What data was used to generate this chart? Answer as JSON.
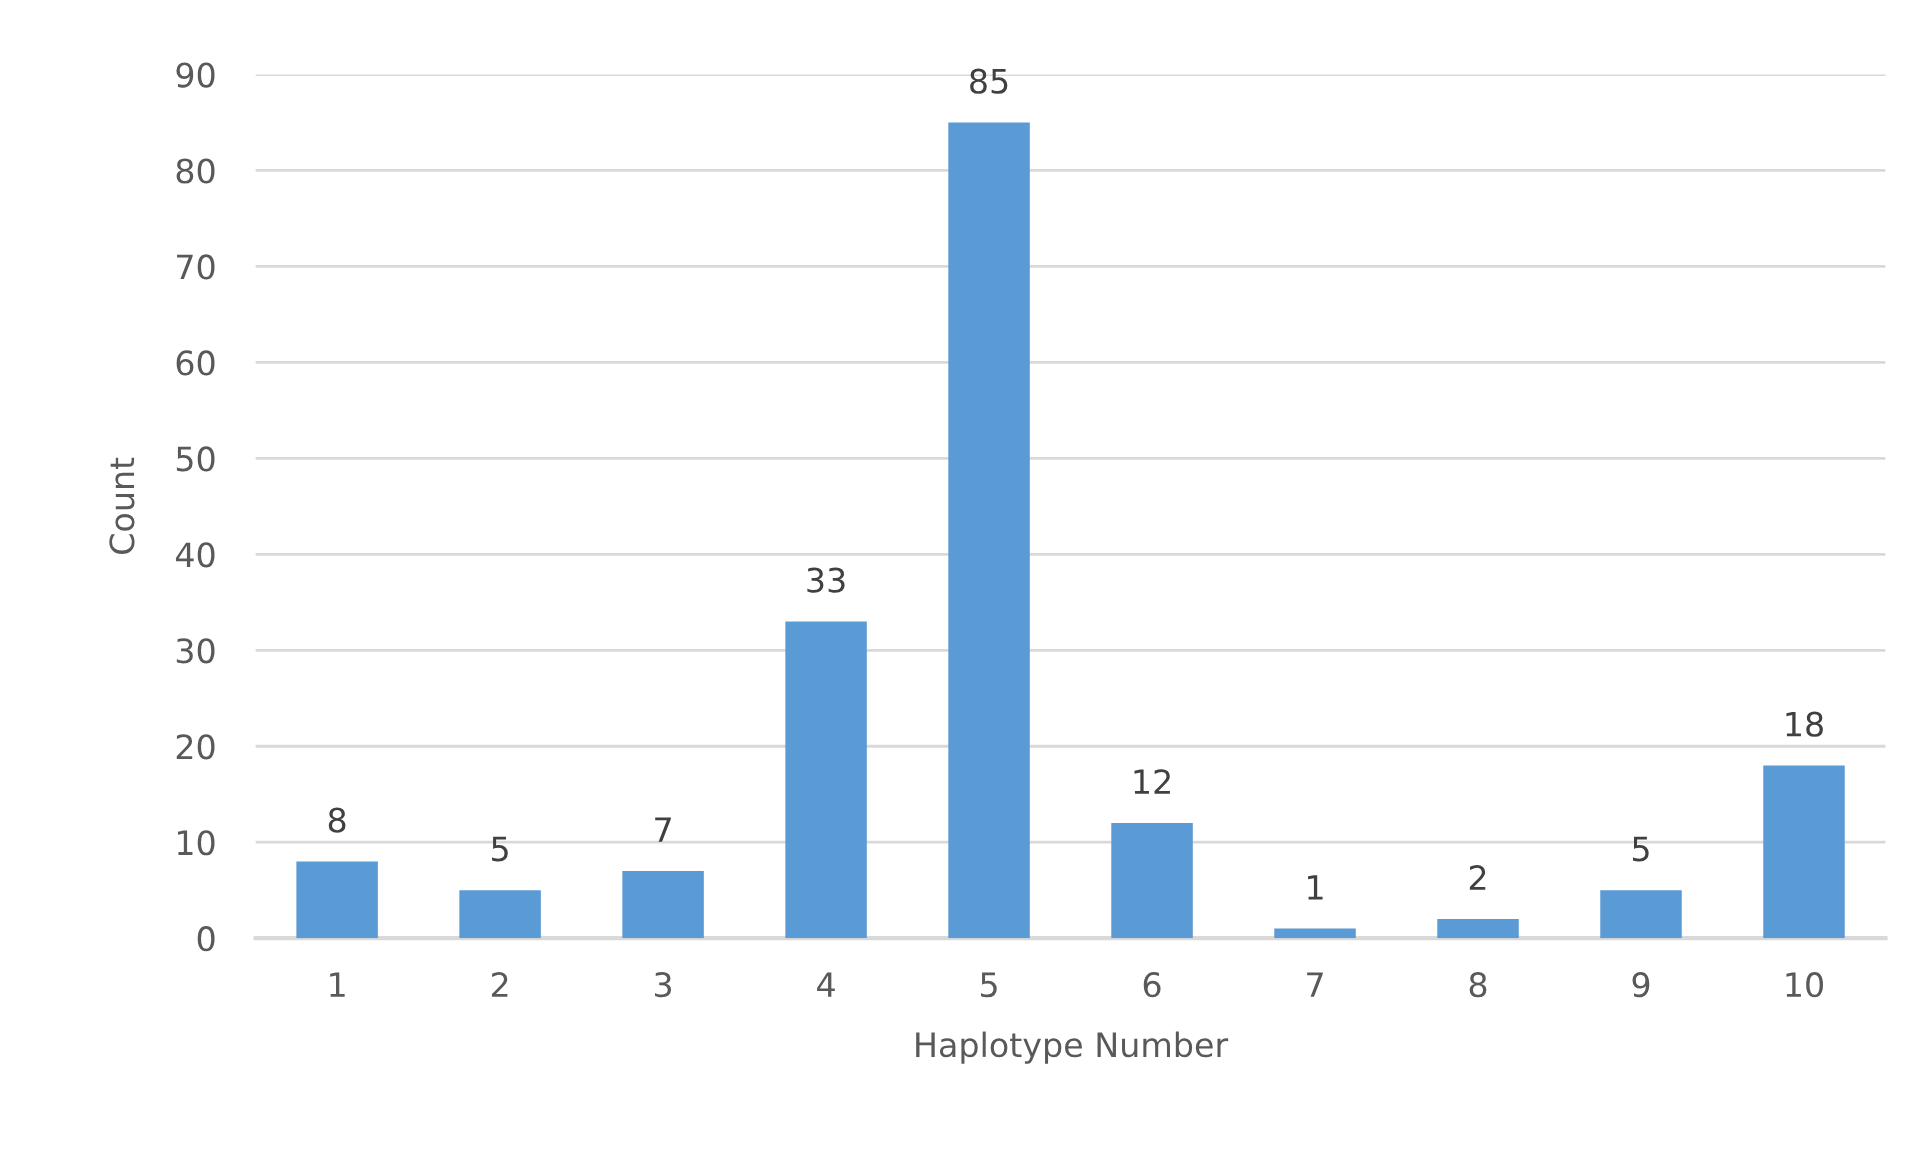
{
  "chart_data": {
    "type": "bar",
    "xlabel": "Haplotype Number",
    "ylabel": "Count",
    "categories": [
      "1",
      "2",
      "3",
      "4",
      "5",
      "6",
      "7",
      "8",
      "9",
      "10"
    ],
    "values": [
      8,
      5,
      7,
      33,
      85,
      12,
      1,
      2,
      5,
      18
    ],
    "color": "#5b9bd5",
    "ylim": [
      0,
      90
    ],
    "yticks": [
      0,
      10,
      20,
      30,
      40,
      50,
      60,
      70,
      80,
      90
    ],
    "grid": "y",
    "data_labels": true,
    "legend": false
  }
}
